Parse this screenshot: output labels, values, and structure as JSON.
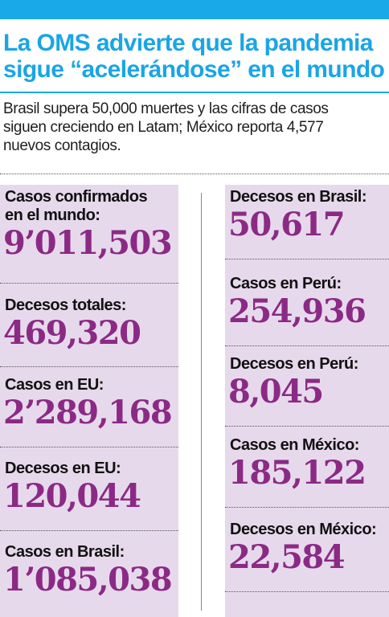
{
  "headline": {
    "line1": "La OMS advierte que la pandemia",
    "line2": "sigue “acelerándose” en el mundo"
  },
  "subhead": {
    "line1": "Brasil supera 50,000 muertes y las cifras de casos",
    "line2": "siguen creciendo en Latam; México reporta 4,577",
    "line3": "nuevos contagios."
  },
  "stats_left": [
    {
      "label1": "Casos confirmados",
      "label2": "en el mundo:",
      "value": "9’011,503"
    },
    {
      "label1": "Decesos totales:",
      "value": "469,320"
    },
    {
      "label1": "Casos en EU:",
      "value": "2’289,168"
    },
    {
      "label1": "Decesos en EU:",
      "value": "120,044"
    },
    {
      "label1": "Casos en Brasil:",
      "value": "1’085,038"
    }
  ],
  "stats_right": [
    {
      "label1": "Decesos en Brasil:",
      "value": "50,617"
    },
    {
      "label1": "Casos en Perú:",
      "value": "254,936"
    },
    {
      "label1": "Decesos en Perú:",
      "value": "8,045"
    },
    {
      "label1": "Casos en México:",
      "value": "185,122"
    },
    {
      "label1": "Decesos en México:",
      "value": "22,584"
    }
  ],
  "colors": {
    "accent": "#19a8e8",
    "panel": "#e7d9ec",
    "value": "#8b2a85"
  }
}
